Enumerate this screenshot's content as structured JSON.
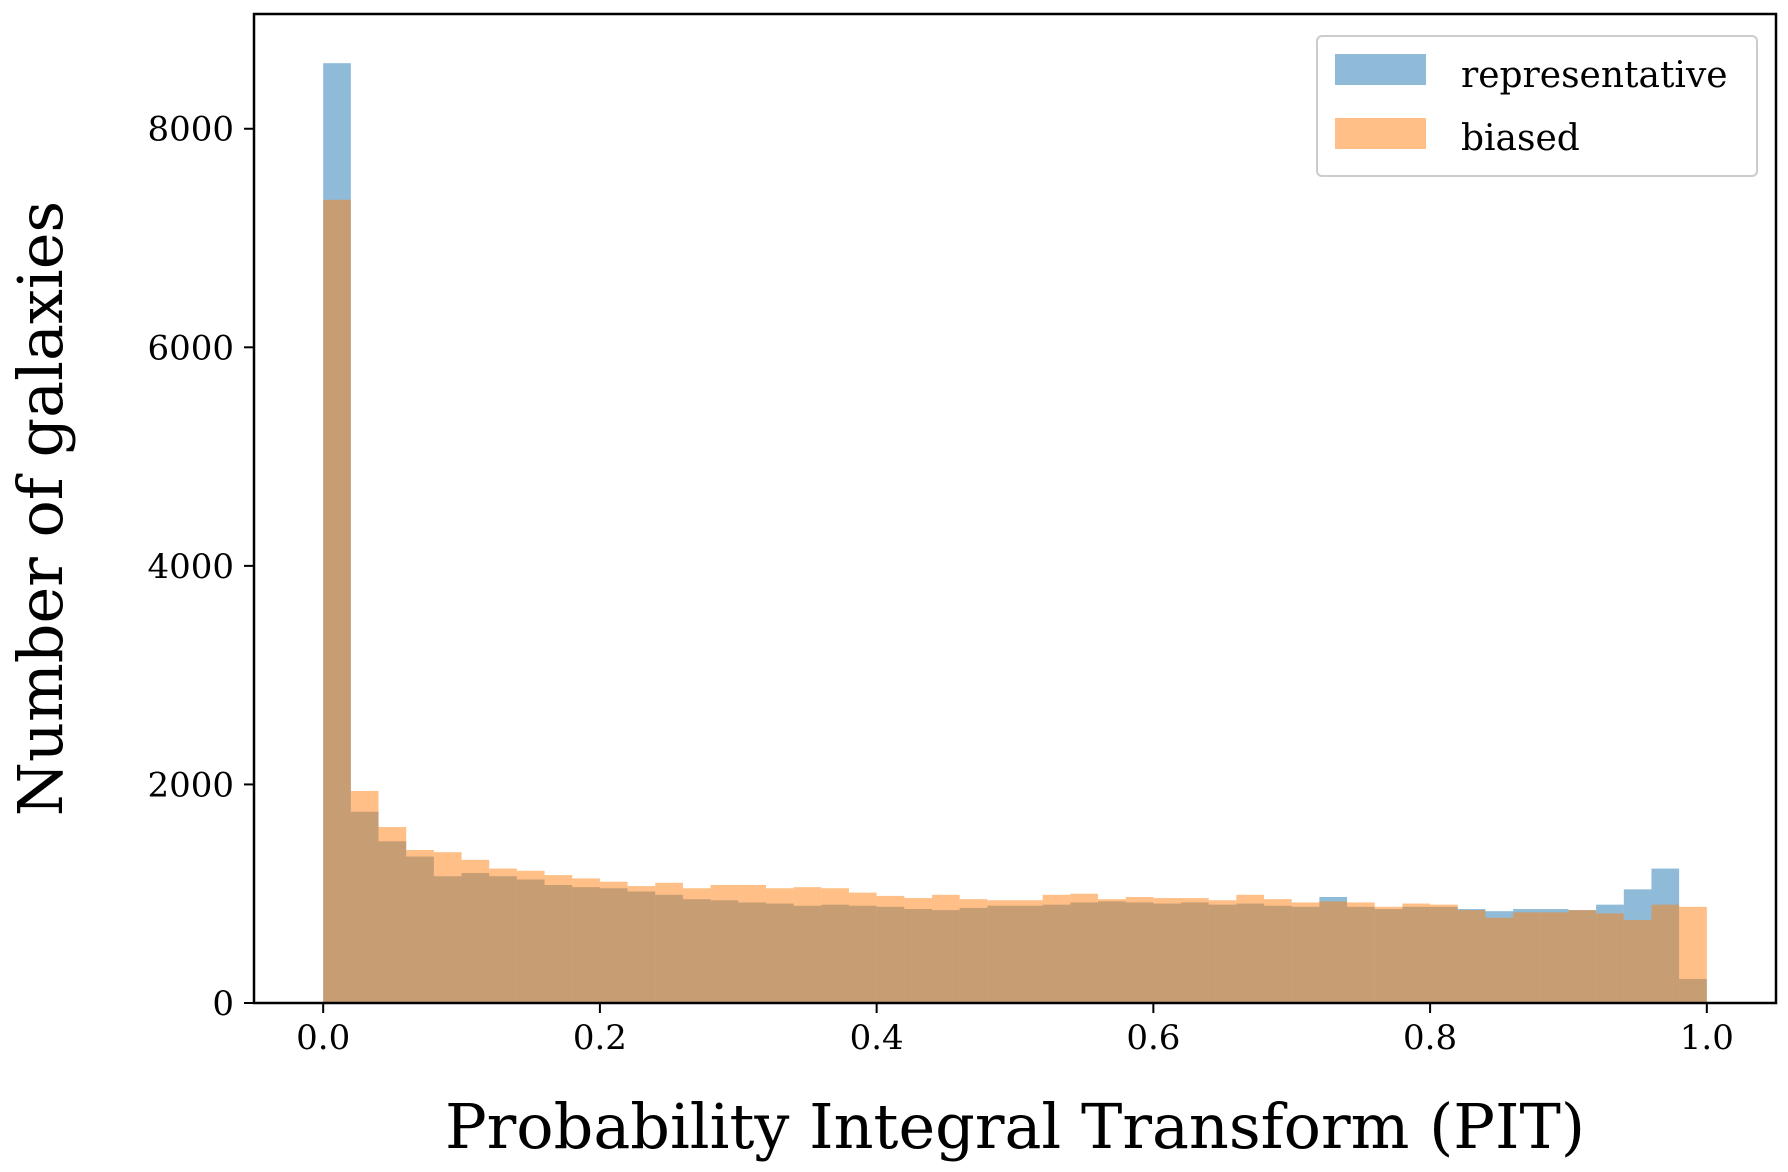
{
  "chart_data": {
    "type": "bar",
    "subtype": "overlapping-histogram",
    "title": "",
    "xlabel": "Probability Integral Transform (PIT)",
    "ylabel": "Number of galaxies",
    "xlim": [
      -0.05,
      1.05
    ],
    "ylim": [
      0,
      9050
    ],
    "xticks": [
      0.0,
      0.2,
      0.4,
      0.6,
      0.8,
      1.0
    ],
    "xtick_labels": [
      "0.0",
      "0.2",
      "0.4",
      "0.6",
      "0.8",
      "1.0"
    ],
    "yticks": [
      0,
      2000,
      4000,
      6000,
      8000
    ],
    "ytick_labels": [
      "0",
      "2000",
      "4000",
      "6000",
      "8000"
    ],
    "grid": false,
    "legend_position": "top-right",
    "bin_width": 0.02,
    "bin_starts": [
      0.0,
      0.02,
      0.04,
      0.06,
      0.08,
      0.1,
      0.12,
      0.14,
      0.16,
      0.18,
      0.2,
      0.22,
      0.24,
      0.26,
      0.28,
      0.3,
      0.32,
      0.34,
      0.36,
      0.38,
      0.4,
      0.42,
      0.44,
      0.46,
      0.48,
      0.5,
      0.52,
      0.54,
      0.56,
      0.58,
      0.6,
      0.62,
      0.64,
      0.66,
      0.68,
      0.7,
      0.72,
      0.74,
      0.76,
      0.78,
      0.8,
      0.82,
      0.84,
      0.86,
      0.88,
      0.9,
      0.92,
      0.94,
      0.96,
      0.98
    ],
    "series": [
      {
        "name": "representative",
        "color": "#1f77b4",
        "opacity": 0.5,
        "values": [
          8600,
          1750,
          1480,
          1340,
          1160,
          1190,
          1160,
          1130,
          1080,
          1060,
          1050,
          1020,
          990,
          950,
          940,
          920,
          910,
          890,
          900,
          890,
          880,
          860,
          850,
          870,
          890,
          890,
          900,
          920,
          930,
          920,
          910,
          920,
          900,
          910,
          890,
          880,
          970,
          880,
          860,
          880,
          880,
          860,
          840,
          860,
          860,
          850,
          900,
          1040,
          1230,
          220
        ]
      },
      {
        "name": "biased",
        "color": "#ff7f0e",
        "opacity": 0.5,
        "values": [
          7350,
          1940,
          1610,
          1400,
          1380,
          1310,
          1230,
          1210,
          1170,
          1140,
          1110,
          1070,
          1100,
          1050,
          1080,
          1080,
          1050,
          1060,
          1050,
          1010,
          980,
          960,
          990,
          950,
          940,
          940,
          990,
          1000,
          950,
          970,
          960,
          960,
          940,
          990,
          950,
          920,
          930,
          920,
          880,
          910,
          900,
          850,
          780,
          830,
          830,
          850,
          820,
          760,
          900,
          880
        ]
      }
    ]
  }
}
